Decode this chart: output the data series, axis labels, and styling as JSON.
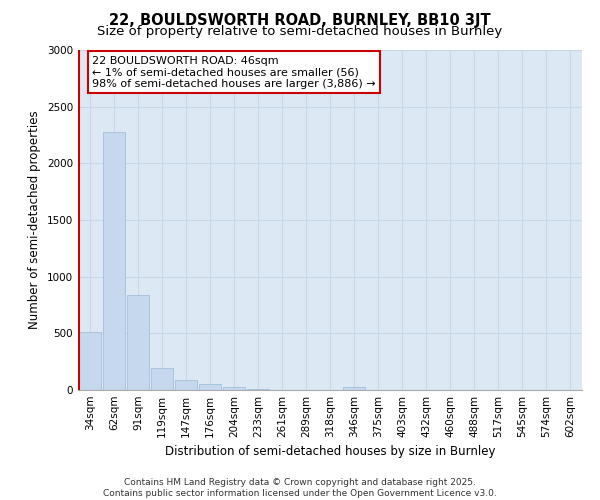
{
  "title_line1": "22, BOULDSWORTH ROAD, BURNLEY, BB10 3JT",
  "title_line2": "Size of property relative to semi-detached houses in Burnley",
  "xlabel": "Distribution of semi-detached houses by size in Burnley",
  "ylabel": "Number of semi-detached properties",
  "categories": [
    "34sqm",
    "62sqm",
    "91sqm",
    "119sqm",
    "147sqm",
    "176sqm",
    "204sqm",
    "233sqm",
    "261sqm",
    "289sqm",
    "318sqm",
    "346sqm",
    "375sqm",
    "403sqm",
    "432sqm",
    "460sqm",
    "488sqm",
    "517sqm",
    "545sqm",
    "574sqm",
    "602sqm"
  ],
  "values": [
    510,
    2280,
    840,
    195,
    90,
    55,
    25,
    10,
    0,
    0,
    0,
    30,
    0,
    0,
    0,
    0,
    0,
    0,
    0,
    0,
    0
  ],
  "bar_color": "#c5d8ee",
  "bar_edge_color": "#9ab8d8",
  "highlight_color": "#cc0000",
  "ylim": [
    0,
    3000
  ],
  "yticks": [
    0,
    500,
    1000,
    1500,
    2000,
    2500,
    3000
  ],
  "annotation_text": "22 BOULDSWORTH ROAD: 46sqm\n← 1% of semi-detached houses are smaller (56)\n98% of semi-detached houses are larger (3,886) →",
  "annotation_box_color": "#ffffff",
  "annotation_box_edge": "#cc0000",
  "grid_color": "#c8d8e8",
  "background_color": "#dce8f4",
  "footer_text": "Contains HM Land Registry data © Crown copyright and database right 2025.\nContains public sector information licensed under the Open Government Licence v3.0.",
  "title_fontsize": 10.5,
  "subtitle_fontsize": 9.5,
  "axis_label_fontsize": 8.5,
  "tick_fontsize": 7.5,
  "annotation_fontsize": 8,
  "footer_fontsize": 6.5
}
